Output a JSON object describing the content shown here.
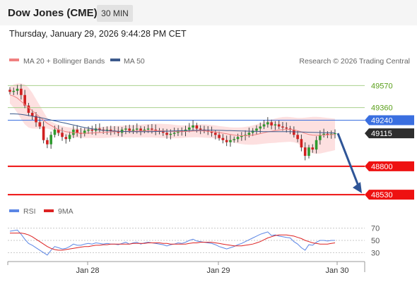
{
  "header": {
    "title": "Dow Jones (CME)",
    "timeframe_button": "30 MIN"
  },
  "datetime": "Thursday, January 29, 2026 9:44:28 PM CET",
  "legend": {
    "bollinger": "MA 20 + Bollinger Bands",
    "ma50": "MA 50",
    "credit": "Research © 2026 Trading Central",
    "rsi": "RSI",
    "ma9": "9MA"
  },
  "colors": {
    "bollinger": "#f08080",
    "band_fill": "#fde0e0",
    "ma50": "#3c5a8c",
    "resistance_green": "#a8d08d",
    "label_green": "#5a9f1a",
    "pivot_blue": "#3a6fe0",
    "support_red": "#ee1111",
    "current": "#2d2d2d",
    "arrow": "#2f5597",
    "rsi": "#5b86e5",
    "rsi_ma": "#dd2222"
  },
  "chart_data": [
    {
      "type": "candlestick",
      "title": "",
      "ylim": [
        48470,
        49660
      ],
      "x_ticks": [
        "Jan 28",
        "Jan 29",
        "Jan 30"
      ],
      "levels": [
        {
          "label": "49570",
          "value": 49570,
          "kind": "resistance"
        },
        {
          "label": "49360",
          "value": 49360,
          "kind": "resistance"
        },
        {
          "label": "49240",
          "value": 49240,
          "kind": "pivot"
        },
        {
          "label": "49115",
          "value": 49115,
          "kind": "last"
        },
        {
          "label": "48800",
          "value": 48800,
          "kind": "support"
        },
        {
          "label": "48530",
          "value": 48530,
          "kind": "support"
        }
      ],
      "closes": [
        49510,
        49520,
        49540,
        49480,
        49380,
        49310,
        49280,
        49220,
        49180,
        49050,
        49010,
        49100,
        49150,
        49120,
        49080,
        49060,
        49100,
        49150,
        49120,
        49110,
        49140,
        49150,
        49140,
        49160,
        49150,
        49140,
        49150,
        49140,
        49130,
        49120,
        49150,
        49160,
        49140,
        49150,
        49160,
        49140,
        49150,
        49160,
        49150,
        49140,
        49130,
        49120,
        49100,
        49110,
        49120,
        49140,
        49130,
        49150,
        49170,
        49190,
        49160,
        49150,
        49140,
        49130,
        49120,
        49100,
        49070,
        49050,
        49030,
        49050,
        49060,
        49080,
        49090,
        49100,
        49120,
        49140,
        49160,
        49180,
        49200,
        49220,
        49190,
        49200,
        49180,
        49170,
        49160,
        49150,
        49100,
        49060,
        48980,
        48900,
        48980,
        48960,
        49050,
        49100,
        49110,
        49100,
        49110,
        49115
      ],
      "ma20": [
        49480,
        49470,
        49450,
        49420,
        49390,
        49360,
        49330,
        49300,
        49270,
        49240,
        49210,
        49190,
        49170,
        49150,
        49140,
        49130,
        49125,
        49120,
        49118,
        49116,
        49115,
        49116,
        49118,
        49120,
        49122,
        49124,
        49126,
        49128,
        49130,
        49131,
        49132,
        49133,
        49134,
        49135,
        49136,
        49137,
        49138,
        49139,
        49140,
        49140,
        49139,
        49138,
        49136,
        49134,
        49132,
        49130,
        49130,
        49132,
        49134,
        49136,
        49138,
        49138,
        49137,
        49135,
        49132,
        49128,
        49122,
        49116,
        49110,
        49104,
        49098,
        49094,
        49092,
        49092,
        49094,
        49098,
        49104,
        49112,
        49120,
        49128,
        49134,
        49140,
        49146,
        49150,
        49152,
        49152,
        49148,
        49140,
        49128,
        49114,
        49104,
        49098,
        49096,
        49096,
        49098,
        49100,
        49102,
        49104
      ],
      "band_upper": [
        49560,
        49580,
        49590,
        49590,
        49580,
        49550,
        49500,
        49440,
        49380,
        49320,
        49260,
        49230,
        49210,
        49195,
        49185,
        49175,
        49170,
        49165,
        49162,
        49160,
        49160,
        49162,
        49165,
        49170,
        49175,
        49178,
        49180,
        49182,
        49184,
        49186,
        49188,
        49190,
        49192,
        49194,
        49196,
        49198,
        49200,
        49202,
        49204,
        49206,
        49206,
        49205,
        49203,
        49200,
        49196,
        49192,
        49190,
        49190,
        49192,
        49195,
        49198,
        49200,
        49200,
        49198,
        49195,
        49190,
        49185,
        49180,
        49176,
        49172,
        49170,
        49170,
        49172,
        49176,
        49182,
        49190,
        49200,
        49212,
        49224,
        49236,
        49246,
        49256,
        49264,
        49270,
        49272,
        49270,
        49266,
        49262,
        49262,
        49264,
        49268,
        49272,
        49272,
        49270,
        49266,
        49262,
        49258,
        49254
      ],
      "band_lower": [
        49400,
        49360,
        49310,
        49250,
        49200,
        49170,
        49160,
        49160,
        49160,
        49160,
        49160,
        49150,
        49130,
        49105,
        49095,
        49085,
        49080,
        49075,
        49074,
        49072,
        49070,
        49070,
        49071,
        49070,
        49069,
        49070,
        49072,
        49074,
        49076,
        49076,
        49076,
        49076,
        49076,
        49076,
        49076,
        49076,
        49076,
        49076,
        49076,
        49074,
        49072,
        49071,
        49069,
        49068,
        49068,
        49068,
        49070,
        49074,
        49076,
        49077,
        49078,
        49076,
        49074,
        49072,
        49069,
        49066,
        49059,
        49052,
        49044,
        49036,
        49026,
        49018,
        49012,
        49008,
        49006,
        49006,
        49008,
        49012,
        49016,
        49020,
        49022,
        49024,
        49028,
        49030,
        49032,
        49034,
        49030,
        49018,
        48994,
        48964,
        48940,
        48924,
        48920,
        48922,
        48930,
        48938,
        48946,
        48954
      ],
      "ma50": [
        49300,
        49300,
        49298,
        49295,
        49290,
        49284,
        49278,
        49272,
        49266,
        49258,
        49250,
        49242,
        49234,
        49226,
        49218,
        49210,
        49202,
        49194,
        49186,
        49178,
        49170,
        49164,
        49158,
        49152,
        49147,
        49143,
        49140,
        49138,
        49136,
        49134,
        49133,
        49132,
        49131,
        49130,
        49130,
        49130,
        49130,
        49130,
        49131,
        49132,
        49133,
        49134,
        49135,
        49136,
        49137,
        49138,
        49139,
        49140,
        49141,
        49142,
        49143,
        49144,
        49145,
        49145,
        49145,
        49144,
        49143,
        49142,
        49141,
        49140,
        49139,
        49138,
        49137,
        49136,
        49135,
        49134,
        49133,
        49132,
        49131,
        49130,
        49130,
        49130,
        49130,
        49130,
        49130,
        49130,
        49129,
        49128,
        49127,
        49126,
        49125,
        49124,
        49123,
        49122,
        49121,
        49120,
        49119,
        49118
      ],
      "forecast": {
        "from": 49115,
        "to": 48530
      }
    },
    {
      "type": "line",
      "title": "",
      "ylim": [
        20,
        80
      ],
      "y_ticks": [
        "70",
        "50",
        "30"
      ],
      "series": [
        {
          "name": "RSI",
          "values": [
            65,
            66,
            67,
            60,
            52,
            45,
            42,
            38,
            34,
            30,
            26,
            34,
            40,
            38,
            36,
            37,
            40,
            44,
            42,
            42,
            44,
            45,
            44,
            46,
            45,
            44,
            45,
            44,
            44,
            43,
            45,
            47,
            44,
            46,
            47,
            44,
            46,
            47,
            46,
            45,
            44,
            43,
            41,
            43,
            44,
            46,
            45,
            47,
            50,
            52,
            49,
            48,
            47,
            46,
            45,
            43,
            40,
            38,
            36,
            38,
            40,
            43,
            45,
            48,
            51,
            54,
            57,
            60,
            62,
            64,
            58,
            59,
            57,
            56,
            55,
            54,
            48,
            44,
            38,
            34,
            43,
            42,
            47,
            50,
            50,
            49,
            50,
            50
          ]
        },
        {
          "name": "9MA",
          "values": [
            62,
            62,
            62,
            62,
            61,
            59,
            56,
            52,
            48,
            44,
            40,
            37,
            35,
            34,
            34,
            35,
            36,
            37,
            38,
            39,
            40,
            40,
            41,
            42,
            42,
            43,
            43,
            44,
            44,
            44,
            44,
            44,
            44,
            45,
            45,
            45,
            45,
            46,
            46,
            46,
            46,
            45,
            45,
            44,
            44,
            44,
            44,
            44,
            45,
            46,
            46,
            47,
            47,
            47,
            47,
            46,
            45,
            44,
            43,
            42,
            41,
            41,
            41,
            42,
            43,
            44,
            46,
            48,
            51,
            54,
            56,
            58,
            59,
            59,
            59,
            58,
            57,
            55,
            53,
            50,
            48,
            46,
            45,
            44,
            44,
            44,
            45,
            46
          ]
        }
      ]
    }
  ]
}
